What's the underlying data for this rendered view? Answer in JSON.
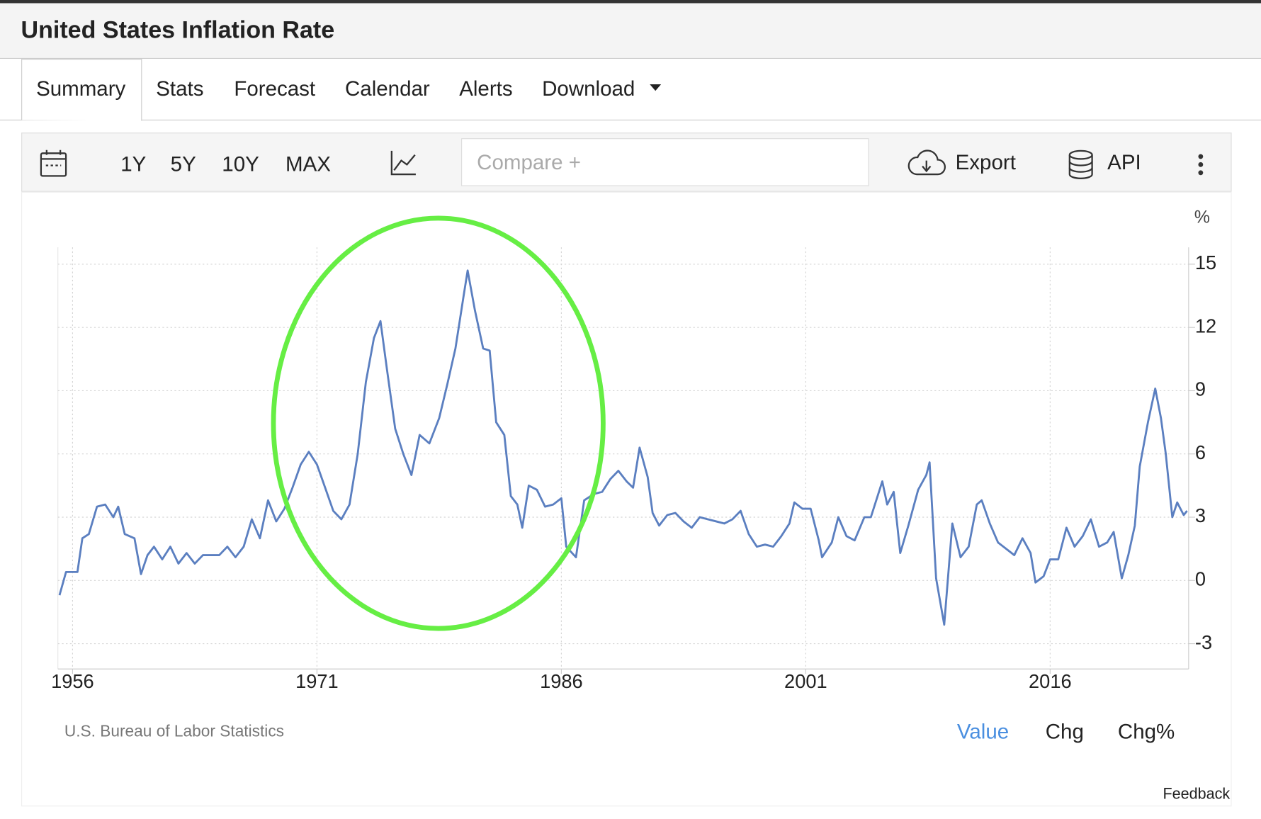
{
  "header": {
    "title": "United States Inflation Rate"
  },
  "tabs": [
    "Summary",
    "Stats",
    "Forecast",
    "Calendar",
    "Alerts",
    "Download"
  ],
  "toolbar": {
    "ranges": [
      "1Y",
      "5Y",
      "10Y",
      "MAX"
    ],
    "compare": "Compare +",
    "export": "Export",
    "api": "API"
  },
  "chart_data": {
    "type": "line",
    "y_label": "%",
    "source": "U.S. Bureau of Labor Statistics",
    "x": [
      1955.2,
      1955.6,
      1956.3,
      1956.6,
      1957,
      1957.5,
      1958,
      1958.5,
      1958.8,
      1959.2,
      1959.8,
      1960.2,
      1960.6,
      1961,
      1961.5,
      1962,
      1962.5,
      1963,
      1963.5,
      1964,
      1964.5,
      1965,
      1965.5,
      1966,
      1966.5,
      1967,
      1967.5,
      1968,
      1968.5,
      1969,
      1969.5,
      1970,
      1970.5,
      1971,
      1971.5,
      1972,
      1972.5,
      1973,
      1973.5,
      1974,
      1974.5,
      1974.9,
      1975.3,
      1975.8,
      1976.3,
      1976.8,
      1977.3,
      1977.9,
      1978.5,
      1979,
      1979.5,
      1980,
      1980.25,
      1980.7,
      1981.2,
      1981.6,
      1982,
      1982.5,
      1982.9,
      1983.3,
      1983.6,
      1984,
      1984.5,
      1985,
      1985.5,
      1986,
      1986.3,
      1986.9,
      1987.4,
      1988,
      1988.5,
      1989,
      1989.5,
      1990,
      1990.4,
      1990.8,
      1991.3,
      1991.6,
      1992,
      1992.5,
      1993,
      1993.5,
      1994,
      1994.5,
      1995,
      1995.5,
      1996,
      1996.5,
      1997,
      1997.5,
      1998,
      1998.5,
      1999,
      1999.5,
      2000,
      2000.3,
      2000.8,
      2001.3,
      2001.8,
      2002,
      2002.6,
      2003,
      2003.5,
      2004,
      2004.6,
      2005,
      2005.7,
      2006,
      2006.4,
      2006.8,
      2007.3,
      2007.9,
      2008.4,
      2008.6,
      2009,
      2009.5,
      2010,
      2010.5,
      2011,
      2011.5,
      2011.8,
      2012.3,
      2012.8,
      2013.3,
      2013.8,
      2014.3,
      2014.8,
      2015.1,
      2015.6,
      2016,
      2016.5,
      2017,
      2017.5,
      2018,
      2018.5,
      2019,
      2019.5,
      2019.9,
      2020.4,
      2020.8,
      2021.2,
      2021.5,
      2022,
      2022.45,
      2022.8,
      2023.1,
      2023.5,
      2023.8,
      2024.2,
      2024.4
    ],
    "series": [
      {
        "color": "#5b7fc0",
        "values": [
          -0.7,
          0.4,
          0.4,
          2.0,
          2.2,
          3.5,
          3.6,
          3.0,
          3.5,
          2.2,
          2.0,
          0.3,
          1.2,
          1.6,
          1.0,
          1.6,
          0.8,
          1.3,
          0.8,
          1.2,
          1.2,
          1.2,
          1.6,
          1.1,
          1.6,
          2.9,
          2.0,
          3.8,
          2.8,
          3.4,
          4.4,
          5.5,
          6.1,
          5.5,
          4.4,
          3.3,
          2.9,
          3.6,
          6.0,
          9.4,
          11.5,
          12.3,
          10.0,
          7.2,
          6.0,
          5.0,
          6.9,
          6.5,
          7.7,
          9.3,
          11.0,
          13.5,
          14.7,
          12.8,
          11.0,
          10.9,
          7.5,
          6.9,
          4.0,
          3.6,
          2.5,
          4.5,
          4.3,
          3.5,
          3.6,
          3.9,
          1.6,
          1.1,
          3.8,
          4.1,
          4.2,
          4.8,
          5.2,
          4.7,
          4.4,
          6.3,
          4.9,
          3.2,
          2.6,
          3.1,
          3.2,
          2.8,
          2.5,
          3.0,
          2.9,
          2.8,
          2.7,
          2.9,
          3.3,
          2.2,
          1.6,
          1.7,
          1.6,
          2.1,
          2.7,
          3.7,
          3.4,
          3.4,
          1.9,
          1.1,
          1.8,
          3.0,
          2.1,
          1.9,
          3.0,
          3.0,
          4.7,
          3.6,
          4.2,
          1.3,
          2.6,
          4.3,
          5.0,
          5.6,
          0.1,
          -2.1,
          2.7,
          1.1,
          1.6,
          3.6,
          3.8,
          2.7,
          1.8,
          1.5,
          1.2,
          2.0,
          1.3,
          -0.1,
          0.2,
          1.0,
          1.0,
          2.5,
          1.6,
          2.1,
          2.9,
          1.6,
          1.8,
          2.3,
          0.1,
          1.2,
          2.6,
          5.4,
          7.5,
          9.1,
          7.7,
          6.0,
          3.0,
          3.7,
          3.1,
          3.3
        ]
      }
    ],
    "xlim": [
      1955.1,
      2024.5
    ],
    "ylim": [
      -4.2,
      15.8
    ],
    "xticks": [
      1956,
      1971,
      1986,
      2001,
      2016
    ],
    "yticks": [
      -3,
      0,
      3,
      6,
      9,
      12,
      15
    ],
    "grid": true
  },
  "footer": {
    "modes": [
      "Value",
      "Chg",
      "Chg%"
    ],
    "feedback": "Feedback"
  }
}
